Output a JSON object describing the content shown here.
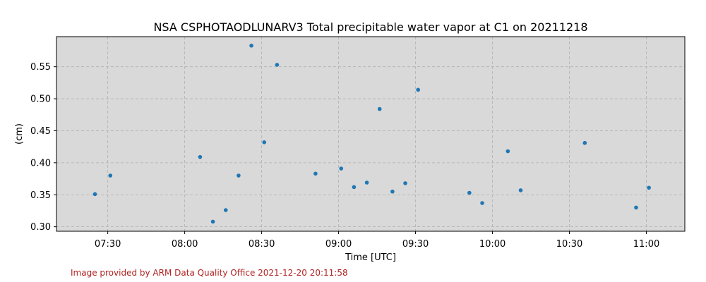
{
  "chart_data": {
    "type": "scatter",
    "title": "NSA CSPHOTAODLUNARV3 Total precipitable water vapor at C1 on 20211218",
    "xlabel": "Time [UTC]",
    "ylabel": "(cm)",
    "xlim": [
      "07:10",
      "11:15"
    ],
    "ylim": [
      0.293,
      0.597
    ],
    "x_ticks": [
      "07:30",
      "08:00",
      "08:30",
      "09:00",
      "09:30",
      "10:00",
      "10:30",
      "11:00"
    ],
    "y_ticks": [
      0.3,
      0.35,
      0.4,
      0.45,
      0.5,
      0.55
    ],
    "grid": true,
    "point_color": "#1f77b4",
    "background_color": "#d9d9d9",
    "points": [
      {
        "x": "07:25",
        "y": 0.351
      },
      {
        "x": "07:31",
        "y": 0.38
      },
      {
        "x": "08:06",
        "y": 0.409
      },
      {
        "x": "08:11",
        "y": 0.308
      },
      {
        "x": "08:16",
        "y": 0.326
      },
      {
        "x": "08:21",
        "y": 0.38
      },
      {
        "x": "08:26",
        "y": 0.583
      },
      {
        "x": "08:31",
        "y": 0.432
      },
      {
        "x": "08:36",
        "y": 0.553
      },
      {
        "x": "08:51",
        "y": 0.383
      },
      {
        "x": "09:01",
        "y": 0.391
      },
      {
        "x": "09:06",
        "y": 0.362
      },
      {
        "x": "09:11",
        "y": 0.369
      },
      {
        "x": "09:16",
        "y": 0.484
      },
      {
        "x": "09:21",
        "y": 0.355
      },
      {
        "x": "09:26",
        "y": 0.368
      },
      {
        "x": "09:31",
        "y": 0.514
      },
      {
        "x": "09:51",
        "y": 0.353
      },
      {
        "x": "09:56",
        "y": 0.337
      },
      {
        "x": "10:06",
        "y": 0.418
      },
      {
        "x": "10:11",
        "y": 0.357
      },
      {
        "x": "10:36",
        "y": 0.431
      },
      {
        "x": "10:56",
        "y": 0.33
      },
      {
        "x": "11:01",
        "y": 0.361
      }
    ]
  },
  "footer": {
    "credit": "Image provided by ARM Data Quality Office 2021-12-20 20:11:58"
  }
}
